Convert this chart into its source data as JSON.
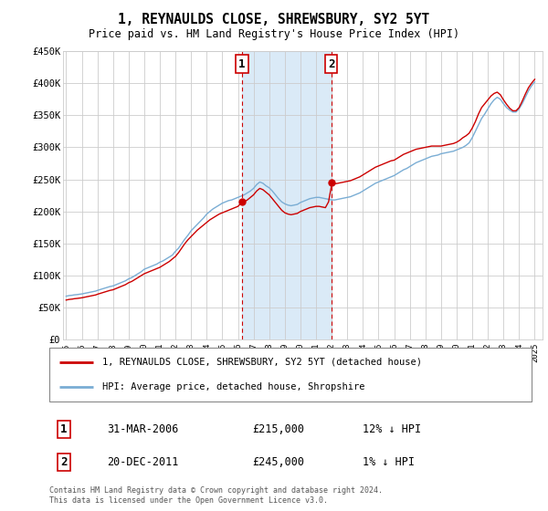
{
  "title": "1, REYNAULDS CLOSE, SHREWSBURY, SY2 5YT",
  "subtitle": "Price paid vs. HM Land Registry's House Price Index (HPI)",
  "legend_line1": "1, REYNAULDS CLOSE, SHREWSBURY, SY2 5YT (detached house)",
  "legend_line2": "HPI: Average price, detached house, Shropshire",
  "transaction1_date": "31-MAR-2006",
  "transaction1_price": "£215,000",
  "transaction1_hpi": "12% ↓ HPI",
  "transaction1_year": 2006.25,
  "transaction1_price_val": 215000,
  "transaction2_date": "20-DEC-2011",
  "transaction2_price": "£245,000",
  "transaction2_hpi": "1% ↓ HPI",
  "transaction2_year": 2011.97,
  "transaction2_price_val": 245000,
  "footer": "Contains HM Land Registry data © Crown copyright and database right 2024.\nThis data is licensed under the Open Government Licence v3.0.",
  "line_color_property": "#cc0000",
  "line_color_hpi": "#7aadd4",
  "shade_color": "#daeaf7",
  "marker_box_color": "#cc0000",
  "ylim": [
    0,
    450000
  ],
  "yticks": [
    0,
    50000,
    100000,
    150000,
    200000,
    250000,
    300000,
    350000,
    400000,
    450000
  ],
  "ytick_labels": [
    "£0",
    "£50K",
    "£100K",
    "£150K",
    "£200K",
    "£250K",
    "£300K",
    "£350K",
    "£400K",
    "£450K"
  ],
  "xlim_start": 1994.8,
  "xlim_end": 2025.5,
  "hpi_years": [
    1995.0,
    1995.1,
    1995.2,
    1995.3,
    1995.4,
    1995.5,
    1995.6,
    1995.7,
    1995.8,
    1995.9,
    1996.0,
    1996.1,
    1996.2,
    1996.3,
    1996.4,
    1996.5,
    1996.6,
    1996.7,
    1996.8,
    1996.9,
    1997.0,
    1997.2,
    1997.4,
    1997.6,
    1997.8,
    1998.0,
    1998.2,
    1998.4,
    1998.6,
    1998.8,
    1999.0,
    1999.2,
    1999.4,
    1999.6,
    1999.8,
    2000.0,
    2000.2,
    2000.4,
    2000.6,
    2000.8,
    2001.0,
    2001.2,
    2001.4,
    2001.6,
    2001.8,
    2002.0,
    2002.2,
    2002.4,
    2002.6,
    2002.8,
    2003.0,
    2003.2,
    2003.4,
    2003.6,
    2003.8,
    2004.0,
    2004.2,
    2004.4,
    2004.6,
    2004.8,
    2005.0,
    2005.2,
    2005.4,
    2005.6,
    2005.8,
    2006.0,
    2006.2,
    2006.4,
    2006.6,
    2006.8,
    2007.0,
    2007.2,
    2007.4,
    2007.6,
    2007.8,
    2008.0,
    2008.2,
    2008.4,
    2008.6,
    2008.8,
    2009.0,
    2009.2,
    2009.4,
    2009.6,
    2009.8,
    2010.0,
    2010.2,
    2010.4,
    2010.6,
    2010.8,
    2011.0,
    2011.2,
    2011.4,
    2011.6,
    2011.8,
    2012.0,
    2012.2,
    2012.4,
    2012.6,
    2012.8,
    2013.0,
    2013.2,
    2013.4,
    2013.6,
    2013.8,
    2014.0,
    2014.2,
    2014.4,
    2014.6,
    2014.8,
    2015.0,
    2015.2,
    2015.4,
    2015.6,
    2015.8,
    2016.0,
    2016.2,
    2016.4,
    2016.6,
    2016.8,
    2017.0,
    2017.2,
    2017.4,
    2017.6,
    2017.8,
    2018.0,
    2018.2,
    2018.4,
    2018.6,
    2018.8,
    2019.0,
    2019.2,
    2019.4,
    2019.6,
    2019.8,
    2020.0,
    2020.2,
    2020.4,
    2020.6,
    2020.8,
    2021.0,
    2021.2,
    2021.4,
    2021.6,
    2021.8,
    2022.0,
    2022.2,
    2022.4,
    2022.6,
    2022.8,
    2023.0,
    2023.2,
    2023.4,
    2023.6,
    2023.8,
    2024.0,
    2024.2,
    2024.4,
    2024.6,
    2024.8,
    2025.0
  ],
  "hpi_values": [
    68000,
    68500,
    69000,
    69200,
    69500,
    70000,
    70200,
    70500,
    70800,
    71000,
    71500,
    72000,
    72500,
    73000,
    73500,
    74000,
    74500,
    75000,
    75500,
    76000,
    77000,
    78500,
    80000,
    81500,
    83000,
    84000,
    86000,
    88000,
    90000,
    92000,
    95000,
    97000,
    100000,
    103000,
    106000,
    110000,
    112000,
    114000,
    116000,
    118000,
    121000,
    123000,
    126000,
    129000,
    132000,
    138000,
    143000,
    150000,
    157000,
    163000,
    170000,
    175000,
    180000,
    185000,
    190000,
    196000,
    200000,
    204000,
    207000,
    210000,
    213000,
    215000,
    217000,
    218000,
    220000,
    222000,
    224000,
    226000,
    229000,
    232000,
    236000,
    242000,
    246000,
    244000,
    240000,
    237000,
    232000,
    226000,
    220000,
    215000,
    212000,
    210000,
    209000,
    210000,
    211000,
    214000,
    216000,
    218000,
    220000,
    221000,
    222000,
    222000,
    221000,
    220000,
    219000,
    218000,
    218000,
    219000,
    220000,
    221000,
    222000,
    223000,
    225000,
    227000,
    229000,
    232000,
    235000,
    238000,
    241000,
    244000,
    246000,
    248000,
    250000,
    252000,
    254000,
    256000,
    259000,
    262000,
    265000,
    267000,
    270000,
    273000,
    276000,
    278000,
    280000,
    282000,
    284000,
    286000,
    287000,
    288000,
    290000,
    291000,
    292000,
    293000,
    294000,
    296000,
    298000,
    300000,
    303000,
    307000,
    315000,
    325000,
    335000,
    345000,
    352000,
    360000,
    368000,
    374000,
    378000,
    375000,
    368000,
    362000,
    358000,
    355000,
    355000,
    360000,
    368000,
    378000,
    388000,
    396000,
    402000
  ],
  "property_years": [
    1995.0,
    1995.1,
    1995.2,
    1995.3,
    1995.4,
    1995.5,
    1995.6,
    1995.7,
    1995.8,
    1995.9,
    1996.0,
    1996.1,
    1996.2,
    1996.3,
    1996.4,
    1996.5,
    1996.6,
    1996.7,
    1996.8,
    1996.9,
    1997.0,
    1997.2,
    1997.4,
    1997.6,
    1997.8,
    1998.0,
    1998.2,
    1998.4,
    1998.6,
    1998.8,
    1999.0,
    1999.2,
    1999.4,
    1999.6,
    1999.8,
    2000.0,
    2000.2,
    2000.4,
    2000.6,
    2000.8,
    2001.0,
    2001.2,
    2001.4,
    2001.6,
    2001.8,
    2002.0,
    2002.2,
    2002.4,
    2002.6,
    2002.8,
    2003.0,
    2003.2,
    2003.4,
    2003.6,
    2003.8,
    2004.0,
    2004.2,
    2004.4,
    2004.6,
    2004.8,
    2005.0,
    2005.2,
    2005.4,
    2005.6,
    2005.8,
    2006.0,
    2006.2,
    2006.4,
    2006.6,
    2006.8,
    2007.0,
    2007.2,
    2007.4,
    2007.6,
    2007.8,
    2008.0,
    2008.2,
    2008.4,
    2008.6,
    2008.8,
    2009.0,
    2009.2,
    2009.4,
    2009.6,
    2009.8,
    2010.0,
    2010.2,
    2010.4,
    2010.6,
    2010.8,
    2011.0,
    2011.2,
    2011.4,
    2011.6,
    2011.8,
    2012.0,
    2012.2,
    2012.4,
    2012.6,
    2012.8,
    2013.0,
    2013.2,
    2013.4,
    2013.6,
    2013.8,
    2014.0,
    2014.2,
    2014.4,
    2014.6,
    2014.8,
    2015.0,
    2015.2,
    2015.4,
    2015.6,
    2015.8,
    2016.0,
    2016.2,
    2016.4,
    2016.6,
    2016.8,
    2017.0,
    2017.2,
    2017.4,
    2017.6,
    2017.8,
    2018.0,
    2018.2,
    2018.4,
    2018.6,
    2018.8,
    2019.0,
    2019.2,
    2019.4,
    2019.6,
    2019.8,
    2020.0,
    2020.2,
    2020.4,
    2020.6,
    2020.8,
    2021.0,
    2021.2,
    2021.4,
    2021.6,
    2021.8,
    2022.0,
    2022.2,
    2022.4,
    2022.6,
    2022.8,
    2023.0,
    2023.2,
    2023.4,
    2023.6,
    2023.8,
    2024.0,
    2024.2,
    2024.4,
    2024.6,
    2024.8,
    2025.0
  ],
  "property_values": [
    62000,
    62500,
    63000,
    63200,
    63500,
    64000,
    64200,
    64500,
    64800,
    65000,
    65500,
    66000,
    66500,
    67000,
    67500,
    68000,
    68500,
    69000,
    69500,
    70000,
    71000,
    72500,
    74000,
    75500,
    77000,
    78000,
    80000,
    82000,
    84000,
    86000,
    89000,
    91000,
    94000,
    97000,
    100000,
    103000,
    105000,
    107000,
    109000,
    111000,
    113000,
    116000,
    119000,
    122000,
    126000,
    130000,
    136000,
    143000,
    150000,
    156000,
    161000,
    166000,
    171000,
    175000,
    179000,
    183000,
    187000,
    190000,
    193000,
    196000,
    198000,
    200000,
    202000,
    204000,
    206000,
    208000,
    213000,
    215000,
    218000,
    222000,
    226000,
    232000,
    236000,
    234000,
    230000,
    226000,
    220000,
    214000,
    208000,
    202000,
    198000,
    196000,
    195000,
    196000,
    197000,
    200000,
    202000,
    204000,
    206000,
    207000,
    208000,
    208000,
    207000,
    206000,
    215000,
    242000,
    243000,
    244000,
    245000,
    246000,
    247000,
    248000,
    250000,
    252000,
    254000,
    257000,
    260000,
    263000,
    266000,
    269000,
    271000,
    273000,
    275000,
    277000,
    279000,
    280000,
    283000,
    286000,
    289000,
    291000,
    293000,
    295000,
    297000,
    298000,
    299000,
    300000,
    301000,
    302000,
    302000,
    302000,
    302000,
    303000,
    304000,
    305000,
    306000,
    308000,
    311000,
    315000,
    318000,
    322000,
    330000,
    340000,
    352000,
    362000,
    368000,
    374000,
    380000,
    384000,
    386000,
    382000,
    374000,
    367000,
    361000,
    357000,
    357000,
    362000,
    372000,
    383000,
    393000,
    400000,
    406000
  ],
  "background_color": "#ffffff",
  "grid_color": "#cccccc"
}
